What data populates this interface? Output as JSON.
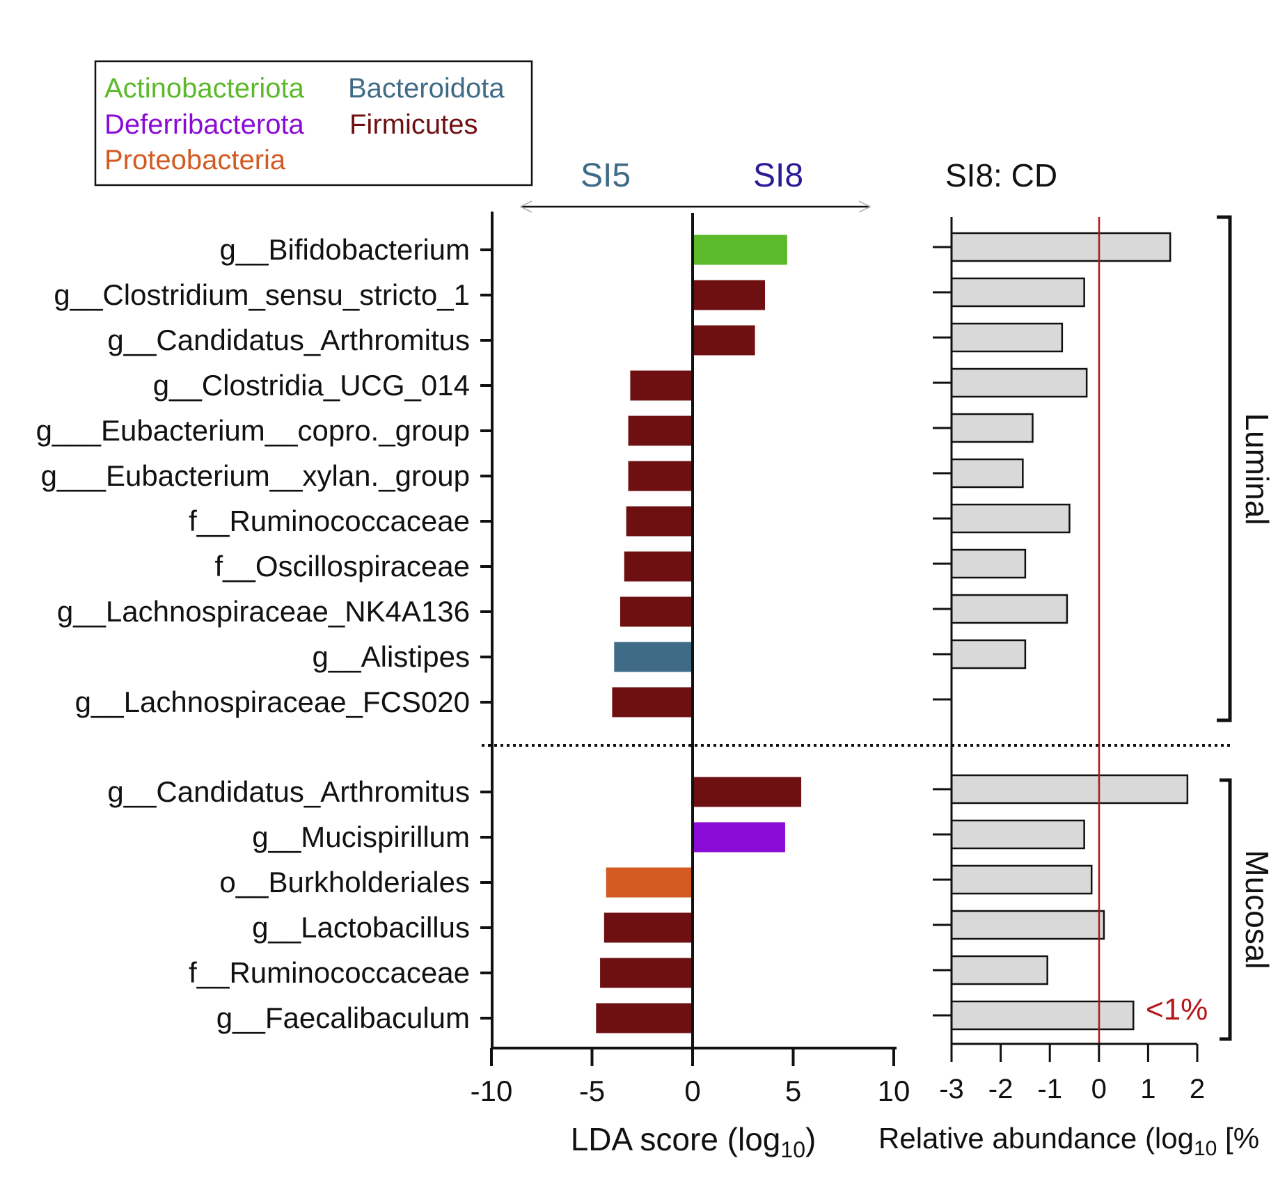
{
  "legend": {
    "entries": [
      {
        "label": "Actinobacteriota",
        "color": "#5bb92a"
      },
      {
        "label": "Bacteroidota",
        "color": "#3f6b86"
      },
      {
        "label": "Deferribacterota",
        "color": "#8a0ad6"
      },
      {
        "label": "Firmicutes",
        "color": "#6e1012"
      },
      {
        "label": "Proteobacteria",
        "color": "#d35a21"
      }
    ]
  },
  "direction": {
    "left_label": "SI5",
    "left_color": "#3f6b86",
    "right_label": "SI8",
    "right_color": "#2a1a96"
  },
  "right_panel_title": "SI8: CD",
  "reference_label": "<1%",
  "reference_color": "#b4161b",
  "chart_data": [
    {
      "type": "bar",
      "orientation": "horizontal",
      "xlabel": "LDA score (log",
      "xlabel_subscript": "10",
      "xlabel_suffix": ")",
      "xlim": [
        -10,
        10
      ],
      "xticks": [
        "-10",
        "-5",
        "0",
        "5",
        "10"
      ],
      "categories": [
        "g__Bifidobacterium",
        "g__Clostridium_sensu_stricto_1",
        "g__Candidatus_Arthromitus",
        "g__Clostridia_UCG_014",
        "g___Eubacterium__copro._group",
        "g___Eubacterium__xylan._group",
        "f__Ruminococcaceae",
        "f__Oscillospiraceae",
        "g__Lachnospiraceae_NK4A136",
        "g__Alistipes",
        "g__Lachnospiraceae_FCS020",
        "g__Candidatus_Arthromitus",
        "g__Mucispirillum",
        "o__Burkholderiales",
        "g__Lactobacillus",
        "f__Ruminococcaceae",
        "g__Faecalibaculum"
      ],
      "values": [
        4.7,
        3.6,
        3.1,
        -3.1,
        -3.2,
        -3.2,
        -3.3,
        -3.4,
        -3.6,
        -3.9,
        -4.0,
        5.4,
        4.6,
        -4.3,
        -4.4,
        -4.6,
        -4.8
      ],
      "phyla": [
        "Actinobacteriota",
        "Firmicutes",
        "Firmicutes",
        "Firmicutes",
        "Firmicutes",
        "Firmicutes",
        "Firmicutes",
        "Firmicutes",
        "Firmicutes",
        "Bacteroidota",
        "Firmicutes",
        "Firmicutes",
        "Deferribacterota",
        "Proteobacteria",
        "Firmicutes",
        "Firmicutes",
        "Firmicutes"
      ],
      "groups": [
        {
          "name": "Luminal",
          "start": 0,
          "end": 10
        },
        {
          "name": "Mucosal",
          "start": 11,
          "end": 16
        }
      ]
    },
    {
      "type": "bar",
      "orientation": "horizontal",
      "title": "SI8: CD",
      "xlabel": "Relative abundance (log",
      "xlabel_subscript": "10",
      "xlabel_suffix": " [%",
      "xlim": [
        -3,
        2
      ],
      "xticks": [
        "-3",
        "-2",
        "-1",
        "0",
        "1",
        "2"
      ],
      "reference_line": 0,
      "bar_color": "#d9d9d9",
      "values": [
        1.45,
        -0.3,
        -0.75,
        -0.25,
        -1.35,
        -1.55,
        -0.6,
        -1.5,
        -0.65,
        -1.5,
        null,
        1.8,
        -0.3,
        -0.15,
        0.1,
        -1.05,
        0.7
      ]
    }
  ]
}
